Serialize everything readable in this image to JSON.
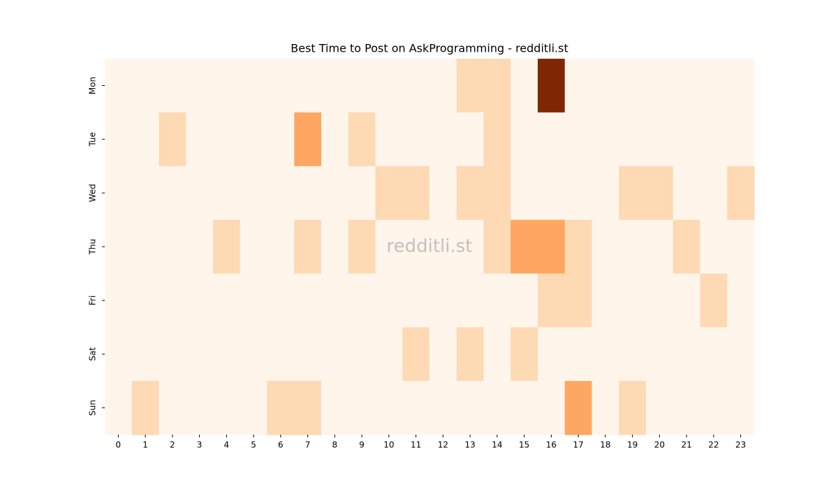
{
  "chart_data": {
    "type": "heatmap",
    "title": "Best Time to Post on AskProgramming - redditli.st",
    "watermark": "redditli.st",
    "x": [
      0,
      1,
      2,
      3,
      4,
      5,
      6,
      7,
      8,
      9,
      10,
      11,
      12,
      13,
      14,
      15,
      16,
      17,
      18,
      19,
      20,
      21,
      22,
      23
    ],
    "y": [
      "Mon",
      "Tue",
      "Wed",
      "Thu",
      "Fri",
      "Sat",
      "Sun"
    ],
    "colormap": "Oranges",
    "values": [
      [
        0,
        0,
        0,
        0,
        0,
        0,
        0,
        0,
        0,
        0,
        0,
        0,
        0,
        1,
        1,
        0,
        5,
        0,
        0,
        0,
        0,
        0,
        0,
        0
      ],
      [
        0,
        0,
        1,
        0,
        0,
        0,
        0,
        2,
        0,
        1,
        0,
        0,
        0,
        0,
        1,
        0,
        0,
        0,
        0,
        0,
        0,
        0,
        0,
        0
      ],
      [
        0,
        0,
        0,
        0,
        0,
        0,
        0,
        0,
        0,
        0,
        1,
        1,
        0,
        1,
        1,
        0,
        0,
        0,
        0,
        1,
        1,
        0,
        0,
        1
      ],
      [
        0,
        0,
        0,
        0,
        1,
        0,
        0,
        1,
        0,
        1,
        0,
        0,
        0,
        0,
        1,
        2,
        2,
        1,
        0,
        0,
        0,
        1,
        0,
        0
      ],
      [
        0,
        0,
        0,
        0,
        0,
        0,
        0,
        0,
        0,
        0,
        0,
        0,
        0,
        0,
        0,
        0,
        1,
        1,
        0,
        0,
        0,
        0,
        1,
        0
      ],
      [
        0,
        0,
        0,
        0,
        0,
        0,
        0,
        0,
        0,
        0,
        0,
        1,
        0,
        1,
        0,
        1,
        0,
        0,
        0,
        0,
        0,
        0,
        0,
        0
      ],
      [
        0,
        1,
        0,
        0,
        0,
        0,
        1,
        1,
        0,
        0,
        0,
        0,
        0,
        0,
        0,
        0,
        0,
        2,
        0,
        1,
        0,
        0,
        0,
        0
      ]
    ]
  }
}
